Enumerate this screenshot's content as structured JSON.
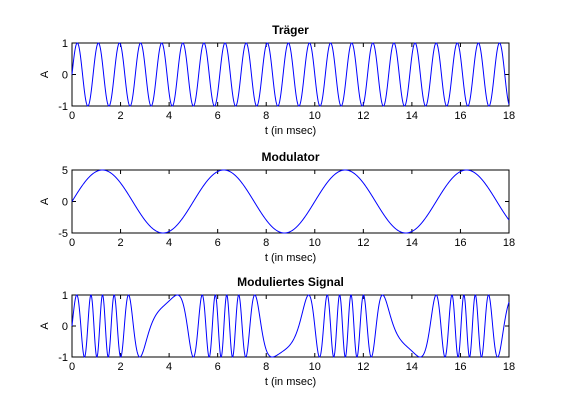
{
  "chart_data": [
    {
      "type": "line",
      "title": "Träger",
      "xlabel": "t (in msec)",
      "ylabel": "A",
      "xlim": [
        0,
        18
      ],
      "ylim": [
        -1,
        1
      ],
      "x_ticks": [
        0,
        2,
        4,
        6,
        8,
        10,
        12,
        14,
        16,
        18
      ],
      "x_tick_labels": [
        "0",
        "2",
        "4",
        "6",
        "8",
        "10",
        "12",
        "14",
        "16",
        "18"
      ],
      "y_ticks": [
        -1,
        0,
        1
      ],
      "y_tick_labels": [
        "-1",
        "0",
        "1"
      ],
      "series": [
        {
          "kind": "sine",
          "amplitude": 1,
          "frequency_khz": 1.15,
          "color": "#0000ff"
        }
      ],
      "grid": false
    },
    {
      "type": "line",
      "title": "Modulator",
      "xlabel": "t (in msec)",
      "ylabel": "A",
      "xlim": [
        0,
        18
      ],
      "ylim": [
        -5,
        5
      ],
      "x_ticks": [
        0,
        2,
        4,
        6,
        8,
        10,
        12,
        14,
        16,
        18
      ],
      "x_tick_labels": [
        "0",
        "2",
        "4",
        "6",
        "8",
        "10",
        "12",
        "14",
        "16",
        "18"
      ],
      "y_ticks": [
        -5,
        0,
        5
      ],
      "y_tick_labels": [
        "-5",
        "0",
        "5"
      ],
      "series": [
        {
          "kind": "sine",
          "amplitude": 5,
          "frequency_khz": 0.2,
          "color": "#0000ff"
        }
      ],
      "grid": false
    },
    {
      "type": "line",
      "title": "Moduliertes Signal",
      "xlabel": "t (in msec)",
      "ylabel": "A",
      "xlim": [
        0,
        18
      ],
      "ylim": [
        -1,
        1
      ],
      "x_ticks": [
        0,
        2,
        4,
        6,
        8,
        10,
        12,
        14,
        16,
        18
      ],
      "x_tick_labels": [
        "0",
        "2",
        "4",
        "6",
        "8",
        "10",
        "12",
        "14",
        "16",
        "18"
      ],
      "y_ticks": [
        -1,
        0,
        1
      ],
      "y_tick_labels": [
        "-1",
        "0",
        "1"
      ],
      "series": [
        {
          "kind": "fm",
          "amplitude": 1,
          "carrier_khz": 1.15,
          "deviation_khz": 1.0,
          "modulator_khz": 0.2,
          "color": "#0000ff"
        }
      ],
      "grid": false
    }
  ]
}
